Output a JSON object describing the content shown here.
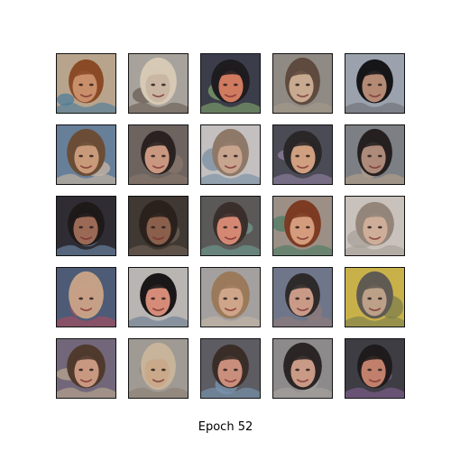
{
  "caption": "Epoch 52",
  "grid": {
    "rows": 5,
    "cols": 5
  },
  "tiles": [
    {
      "bg": "#b8a48c",
      "hair": "#8a4a26",
      "skin": "#c98e6a",
      "accent": "#4f7d9a"
    },
    {
      "bg": "#a7a39c",
      "hair": "#d6c9b5",
      "skin": "#c9b7a3",
      "accent": "#6b5d54"
    },
    {
      "bg": "#3b3d4b",
      "hair": "#1e1c1f",
      "skin": "#d07a60",
      "accent": "#7fa06a"
    },
    {
      "bg": "#8f8a83",
      "hair": "#5e4a3e",
      "skin": "#c7aa8f",
      "accent": "#a59a8a"
    },
    {
      "bg": "#9ba2ad",
      "hair": "#161518",
      "skin": "#b48a74",
      "accent": "#6e7077"
    },
    {
      "bg": "#677f99",
      "hair": "#6b4d36",
      "skin": "#c99a7a",
      "accent": "#c8b5a2"
    },
    {
      "bg": "#6d6460",
      "hair": "#2a2221",
      "skin": "#c99780",
      "accent": "#88766b"
    },
    {
      "bg": "#c3c0bf",
      "hair": "#8e7867",
      "skin": "#c7a48e",
      "accent": "#7a8fa3"
    },
    {
      "bg": "#4b4b55",
      "hair": "#2a2728",
      "skin": "#cf9f80",
      "accent": "#8f7fa0"
    },
    {
      "bg": "#7c7f84",
      "hair": "#25201f",
      "skin": "#ad8a7a",
      "accent": "#b4a08b"
    },
    {
      "bg": "#2f2c33",
      "hair": "#1e1a1a",
      "skin": "#9b6a56",
      "accent": "#6a85a6"
    },
    {
      "bg": "#3f3833",
      "hair": "#2a211c",
      "skin": "#8a5f4c",
      "accent": "#6f5f55"
    },
    {
      "bg": "#5b5957",
      "hair": "#3a2f2b",
      "skin": "#d48874",
      "accent": "#6f9a8f"
    },
    {
      "bg": "#9c8f86",
      "hair": "#7c3b22",
      "skin": "#d49c7c",
      "accent": "#4f7c64"
    },
    {
      "bg": "#c9c1bb",
      "hair": "#94857a",
      "skin": "#cfae99",
      "accent": "#a8a19a"
    },
    {
      "bg": "#4d5b77",
      "hair": "#c4a186",
      "skin": "#c79f86",
      "accent": "#a64f5f"
    },
    {
      "bg": "#b8b5b3",
      "hair": "#1a1718",
      "skin": "#d48c78",
      "accent": "#6e7f95"
    },
    {
      "bg": "#a3a09f",
      "hair": "#9a7a5a",
      "skin": "#cfa58a",
      "accent": "#c3b3a5"
    },
    {
      "bg": "#6f768a",
      "hair": "#2e2a2a",
      "skin": "#c99a86",
      "accent": "#8d7b7a"
    },
    {
      "bg": "#c9b14a",
      "hair": "#5f5a52",
      "skin": "#bca088",
      "accent": "#7d7f4c"
    },
    {
      "bg": "#72677a",
      "hair": "#4f3a2d",
      "skin": "#c99880",
      "accent": "#b8a690"
    },
    {
      "bg": "#a09a94",
      "hair": "#c7b49a",
      "skin": "#c9a98a",
      "accent": "#8c8073"
    },
    {
      "bg": "#5d5c63",
      "hair": "#3a2d28",
      "skin": "#c98f7c",
      "accent": "#7a95b1"
    },
    {
      "bg": "#8c8a8b",
      "hair": "#2b2526",
      "skin": "#c99a86",
      "accent": "#a8a3a0"
    },
    {
      "bg": "#3e3d44",
      "hair": "#1f1b1c",
      "skin": "#c1806c",
      "accent": "#7f5f8f"
    }
  ]
}
